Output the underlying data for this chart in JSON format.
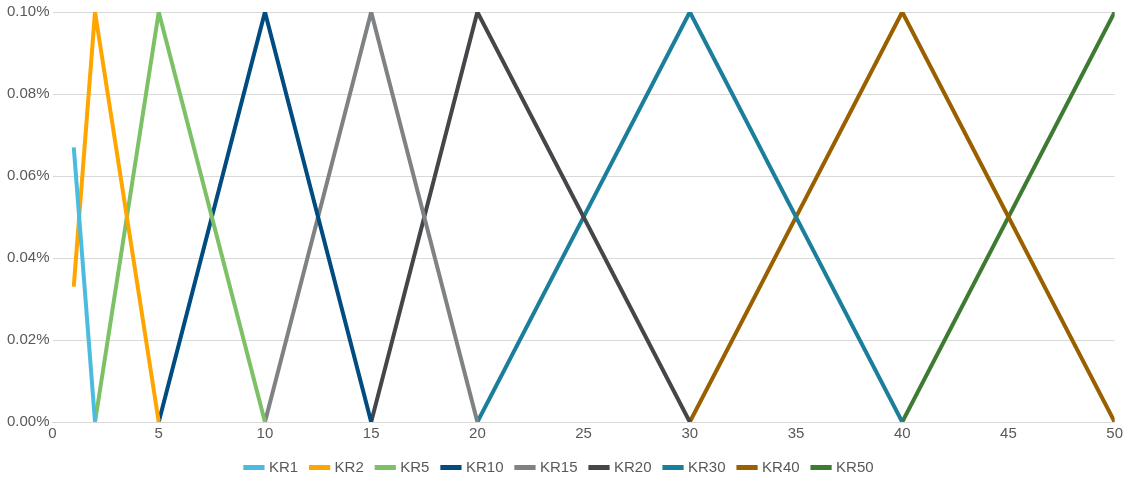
{
  "chart_data": {
    "type": "line",
    "xlim": [
      0,
      50
    ],
    "xticks": [
      0,
      5,
      10,
      15,
      20,
      25,
      30,
      35,
      40,
      45,
      50
    ],
    "ylim": [
      0,
      0.1
    ],
    "yticks": [
      {
        "value": 0,
        "label": "0.00%"
      },
      {
        "value": 0.02,
        "label": "0.02%"
      },
      {
        "value": 0.04,
        "label": "0.04%"
      },
      {
        "value": 0.06,
        "label": "0.06%"
      },
      {
        "value": 0.08,
        "label": "0.08%"
      },
      {
        "value": 0.1,
        "label": "0.10%"
      }
    ],
    "grid": "y",
    "legend": "bottom",
    "marker": "none",
    "line_style": "solid",
    "series": [
      {
        "name": "KR1",
        "color": "#4bbce0",
        "x": [
          1,
          2
        ],
        "values": [
          0.067,
          0
        ]
      },
      {
        "name": "KR2",
        "color": "#ffa500",
        "x": [
          1,
          2,
          5
        ],
        "values": [
          0.033,
          0.1,
          0
        ]
      },
      {
        "name": "KR5",
        "color": "#7dc166",
        "x": [
          2,
          5,
          10
        ],
        "values": [
          0,
          0.1,
          0
        ]
      },
      {
        "name": "KR10",
        "color": "#004c80",
        "x": [
          5,
          10,
          15
        ],
        "values": [
          0,
          0.1,
          0
        ]
      },
      {
        "name": "KR15",
        "color": "#7f8284",
        "x": [
          10,
          15,
          20
        ],
        "values": [
          0,
          0.1,
          0
        ]
      },
      {
        "name": "KR20",
        "color": "#444649",
        "x": [
          15,
          20,
          30
        ],
        "values": [
          0,
          0.1,
          0
        ]
      },
      {
        "name": "KR30",
        "color": "#1b7f9c",
        "x": [
          20,
          30,
          40
        ],
        "values": [
          0,
          0.1,
          0
        ]
      },
      {
        "name": "KR40",
        "color": "#9a6000",
        "x": [
          30,
          40,
          50
        ],
        "values": [
          0,
          0.1,
          0
        ]
      },
      {
        "name": "KR50",
        "color": "#3e7b32",
        "x": [
          40,
          50
        ],
        "values": [
          0,
          0.1
        ]
      }
    ]
  }
}
